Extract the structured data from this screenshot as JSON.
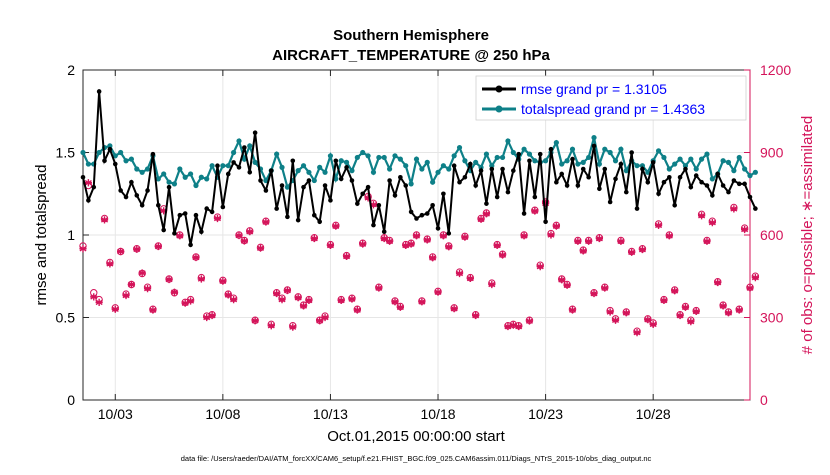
{
  "chart_data": {
    "type": "line",
    "title": "Southern Hemisphere",
    "subtitle": "AIRCRAFT_TEMPERATURE @ 250 hPa",
    "xlabel": "Oct.01,2015 00:00:00 start",
    "ylabel": "rmse and totalspread",
    "ylabel_right": "# of obs: o=possible; ∗=assimilated",
    "footer": "data file: /Users/raeder/DAI/ATM_forcXX/CAM6_setup/f.e21.FHIST_BGC.f09_025.CAM6assim.011/Diags_NTrS_2015-10/obs_diag_output.nc",
    "xlim": [
      1.5,
      32.5
    ],
    "ylim": [
      0,
      2
    ],
    "ylim_right": [
      0,
      1200
    ],
    "x_ticks": [
      3,
      8,
      13,
      18,
      23,
      28
    ],
    "x_tick_labels": [
      "10/03",
      "10/08",
      "10/13",
      "10/18",
      "10/23",
      "10/28"
    ],
    "y_ticks": [
      0,
      0.5,
      1,
      1.5,
      2
    ],
    "y_tick_labels": [
      "0",
      "0.5",
      "1",
      "1.5",
      "2"
    ],
    "y_ticks_right": [
      0,
      300,
      600,
      900,
      1200
    ],
    "y_tick_labels_right": [
      "0",
      "300",
      "600",
      "900",
      "1200"
    ],
    "legend_location": "top-right",
    "colors": {
      "rmse": "#000000",
      "spread": "#0e8088",
      "obs": "#d4145a",
      "left_axis": "#000000",
      "right_axis": "#d4145a",
      "legend_text": "#0000ff",
      "grid": "#e6e6e6"
    },
    "x_start": 1.5,
    "x_step": 0.25,
    "series": [
      {
        "name": "rmse grand pr = 1.3105",
        "axis": "left",
        "values": [
          1.35,
          1.21,
          1.29,
          1.87,
          1.45,
          1.52,
          1.43,
          1.27,
          1.23,
          1.32,
          1.24,
          1.18,
          1.27,
          1.49,
          1.18,
          1.03,
          1.29,
          1.01,
          1.12,
          1.13,
          0.94,
          1.12,
          1.02,
          1.16,
          1.14,
          1.42,
          1.17,
          1.37,
          1.44,
          1.41,
          1.53,
          1.38,
          1.62,
          1.33,
          1.27,
          1.39,
          1.16,
          1.3,
          1.11,
          1.45,
          1.09,
          1.29,
          1.33,
          1.12,
          1.08,
          1.3,
          1.21,
          1.45,
          1.34,
          1.41,
          1.33,
          1.19,
          1.25,
          1.29,
          1.06,
          1.18,
          1.02,
          1.33,
          1.24,
          1.35,
          1.3,
          1.14,
          1.1,
          1.12,
          1.13,
          1.18,
          1.04,
          1.25,
          1.01,
          1.42,
          1.32,
          1.35,
          1.43,
          1.3,
          1.39,
          1.19,
          1.4,
          1.23,
          1.4,
          1.26,
          1.39,
          1.49,
          1.13,
          1.45,
          1.23,
          1.49,
          1.08,
          1.52,
          1.32,
          1.37,
          1.3,
          1.46,
          1.3,
          1.4,
          1.35,
          1.54,
          1.28,
          1.4,
          1.2,
          1.34,
          1.43,
          1.26,
          1.5,
          1.16,
          1.4,
          1.32,
          1.44,
          1.25,
          1.32,
          1.35,
          1.18,
          1.35,
          1.4,
          1.29,
          1.36,
          1.32,
          1.3,
          1.24,
          1.37,
          1.3,
          1.26,
          1.33,
          1.31,
          1.31,
          1.23,
          1.16
        ]
      },
      {
        "name": "totalspread grand pr = 1.4363",
        "axis": "left",
        "values": [
          1.5,
          1.43,
          1.43,
          1.5,
          1.53,
          1.54,
          1.48,
          1.5,
          1.45,
          1.46,
          1.4,
          1.38,
          1.4,
          1.48,
          1.34,
          1.37,
          1.32,
          1.31,
          1.4,
          1.35,
          1.37,
          1.3,
          1.35,
          1.34,
          1.42,
          1.35,
          1.42,
          1.42,
          1.5,
          1.57,
          1.46,
          1.54,
          1.44,
          1.4,
          1.33,
          1.39,
          1.49,
          1.41,
          1.29,
          1.33,
          1.39,
          1.42,
          1.38,
          1.33,
          1.41,
          1.38,
          1.48,
          1.34,
          1.45,
          1.44,
          1.39,
          1.47,
          1.5,
          1.48,
          1.38,
          1.47,
          1.47,
          1.4,
          1.48,
          1.46,
          1.42,
          1.31,
          1.46,
          1.4,
          1.44,
          1.32,
          1.38,
          1.42,
          1.4,
          1.48,
          1.53,
          1.45,
          1.39,
          1.44,
          1.41,
          1.49,
          1.42,
          1.47,
          1.47,
          1.57,
          1.5,
          1.46,
          1.52,
          1.49,
          1.45,
          1.44,
          1.45,
          1.5,
          1.56,
          1.43,
          1.45,
          1.52,
          1.43,
          1.44,
          1.47,
          1.59,
          1.43,
          1.52,
          1.5,
          1.45,
          1.52,
          1.39,
          1.45,
          1.42,
          1.42,
          1.38,
          1.45,
          1.51,
          1.47,
          1.4,
          1.43,
          1.46,
          1.42,
          1.46,
          1.4,
          1.46,
          1.49,
          1.34,
          1.37,
          1.45,
          1.44,
          1.39,
          1.47,
          1.4,
          1.36,
          1.38
        ]
      },
      {
        "name": "# of obs possible",
        "axis": "right",
        "marker": "o",
        "values": [
          560,
          780,
          390,
          365,
          660,
          500,
          335,
          540,
          385,
          420,
          550,
          460,
          410,
          330,
          560,
          695,
          440,
          390,
          600,
          355,
          365,
          520,
          445,
          305,
          310,
          665,
          435,
          385,
          370,
          600,
          580,
          615,
          290,
          555,
          650,
          275,
          390,
          370,
          400,
          270,
          375,
          345,
          365,
          590,
          290,
          305,
          565,
          635,
          365,
          525,
          370,
          330,
          570,
          740,
          715,
          410,
          590,
          580,
          360,
          340,
          565,
          570,
          600,
          360,
          585,
          520,
          395,
          600,
          560,
          335,
          465,
          595,
          445,
          310,
          660,
          680,
          425,
          565,
          530,
          270,
          275,
          270,
          600,
          290,
          690,
          490,
          720,
          605,
          635,
          440,
          420,
          330,
          580,
          545,
          580,
          390,
          590,
          410,
          325,
          295,
          580,
          320,
          540,
          250,
          550,
          295,
          280,
          640,
          365,
          600,
          400,
          310,
          340,
          290,
          325,
          675,
          580,
          650,
          430,
          345,
          320,
          700,
          330,
          625,
          410,
          450
        ]
      },
      {
        "name": "# of obs assimilated",
        "axis": "right",
        "marker": "*",
        "values": [
          550,
          790,
          375,
          355,
          655,
          495,
          330,
          540,
          380,
          420,
          548,
          462,
          405,
          327,
          558,
          688,
          438,
          392,
          597,
          352,
          360,
          518,
          440,
          300,
          307,
          660,
          432,
          382,
          365,
          598,
          578,
          612,
          288,
          552,
          647,
          270,
          387,
          365,
          398,
          265,
          372,
          342,
          362,
          587,
          288,
          300,
          562,
          632,
          362,
          522,
          367,
          327,
          567,
          735,
          710,
          407,
          587,
          577,
          357,
          337,
          562,
          567,
          597,
          357,
          582,
          517,
          392,
          597,
          557,
          332,
          460,
          592,
          442,
          307,
          657,
          677,
          420,
          562,
          527,
          267,
          272,
          267,
          597,
          287,
          687,
          485,
          715,
          600,
          632,
          437,
          417,
          327,
          577,
          542,
          577,
          387,
          587,
          407,
          320,
          290,
          577,
          317,
          537,
          245,
          547,
          292,
          275,
          635,
          362,
          597,
          397,
          307,
          337,
          285,
          322,
          670,
          577,
          645,
          427,
          342,
          317,
          695,
          327,
          620,
          407,
          445
        ]
      }
    ]
  }
}
